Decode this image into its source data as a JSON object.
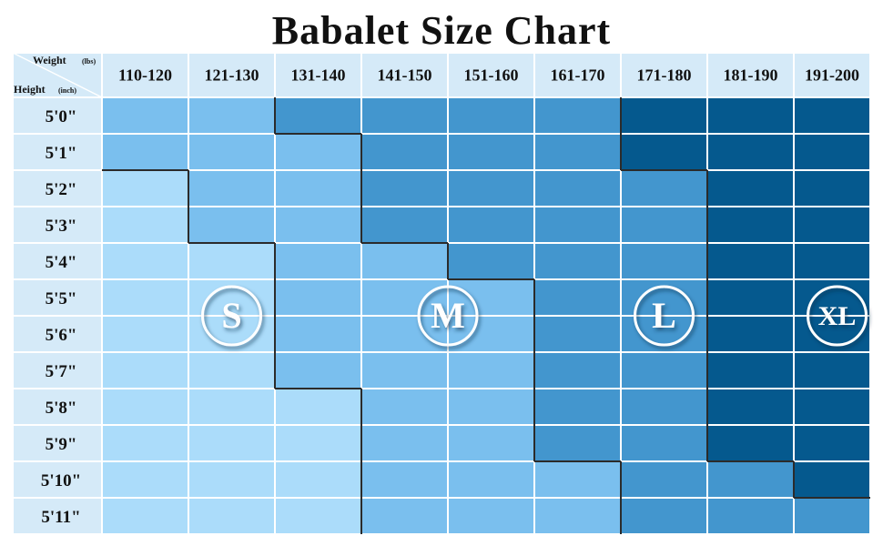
{
  "title": "Babalet Size Chart",
  "corner": {
    "weight_label": "Weight",
    "weight_unit": "(lbs)",
    "height_label": "Height",
    "height_unit": "(inch)"
  },
  "chart_data": {
    "type": "table",
    "title": "Babalet Size Chart",
    "columns": [
      "110-120",
      "121-130",
      "131-140",
      "141-150",
      "151-160",
      "161-170",
      "171-180",
      "181-190",
      "191-200"
    ],
    "rows": [
      "5'0\"",
      "5'1\"",
      "5'2\"",
      "5'3\"",
      "5'4\"",
      "5'5\"",
      "5'6\"",
      "5'7\"",
      "5'8\"",
      "5'9\"",
      "5'10\"",
      "5'11\""
    ],
    "cells": [
      [
        0,
        0,
        1,
        1,
        1,
        1,
        2,
        2,
        2
      ],
      [
        0,
        0,
        0,
        1,
        1,
        1,
        2,
        2,
        2
      ],
      [
        4,
        0,
        0,
        1,
        1,
        1,
        1,
        2,
        2
      ],
      [
        4,
        0,
        0,
        1,
        1,
        1,
        1,
        2,
        2
      ],
      [
        4,
        4,
        0,
        0,
        1,
        1,
        1,
        2,
        2
      ],
      [
        4,
        4,
        0,
        0,
        0,
        1,
        1,
        2,
        2
      ],
      [
        4,
        4,
        0,
        0,
        0,
        1,
        1,
        2,
        2
      ],
      [
        4,
        4,
        0,
        0,
        0,
        1,
        1,
        2,
        2
      ],
      [
        4,
        4,
        4,
        0,
        0,
        1,
        1,
        2,
        2
      ],
      [
        4,
        4,
        4,
        0,
        0,
        1,
        1,
        2,
        2
      ],
      [
        4,
        4,
        4,
        0,
        0,
        0,
        1,
        1,
        2
      ],
      [
        4,
        4,
        4,
        0,
        0,
        0,
        1,
        1,
        1
      ]
    ],
    "size_labels": [
      {
        "label": "S",
        "col": 1,
        "row": 6
      },
      {
        "label": "M",
        "col": 3.5,
        "row": 6
      },
      {
        "label": "L",
        "col": 6,
        "row": 6
      },
      {
        "label": "XL",
        "col": 8,
        "row": 6
      }
    ],
    "level_colors": [
      "#7abfee",
      "#4396ce",
      "#05598e",
      "#5fa8dc",
      "#abdcfa"
    ],
    "header_color": "#d5eaf8",
    "border_color": "#ffffff",
    "boundary_color": "#2b2b2b"
  }
}
